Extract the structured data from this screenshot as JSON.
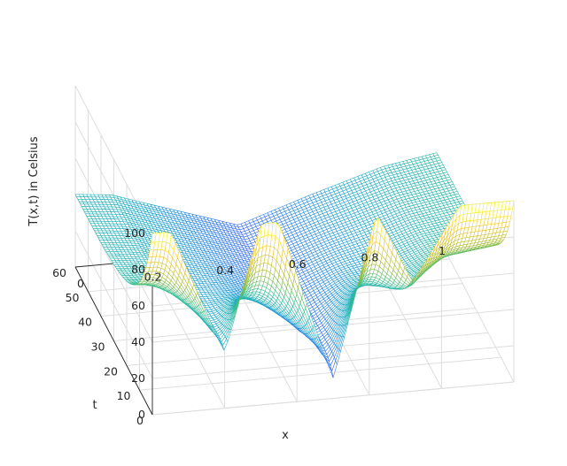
{
  "chart_data": {
    "type": "surface-mesh",
    "zlabel": "T(x,t) in Celsius",
    "xlabel": "x",
    "tlabel": "t",
    "x_ticks": [
      "0",
      "0.2",
      "0.4",
      "0.6",
      "0.8",
      "1"
    ],
    "t_ticks": [
      "0",
      "10",
      "20",
      "30",
      "40",
      "50",
      "60"
    ],
    "z_ticks": [
      "0",
      "20",
      "40",
      "60",
      "80",
      "100"
    ],
    "xlim": [
      0,
      1
    ],
    "tlim": [
      0,
      60
    ],
    "zlim": [
      0,
      100
    ],
    "grid": true,
    "colormap": "parula",
    "colormap_stops": [
      "#3e26a8",
      "#2f6cf0",
      "#14a5c9",
      "#2ebd94",
      "#a6bc2f",
      "#f2c42b",
      "#f9fb15"
    ],
    "initial_profile": {
      "x": [
        0.0,
        0.05,
        0.2,
        0.3,
        0.35,
        0.5,
        0.62,
        0.72,
        0.85,
        1.0
      ],
      "T": [
        100,
        100,
        30,
        100,
        100,
        10,
        100,
        60,
        100,
        100
      ]
    },
    "final_profile": {
      "t": 60,
      "x": [
        0.0,
        0.1,
        0.25,
        0.45,
        0.65,
        0.85,
        1.0
      ],
      "T": [
        40,
        38,
        28,
        15,
        28,
        40,
        45
      ]
    }
  }
}
